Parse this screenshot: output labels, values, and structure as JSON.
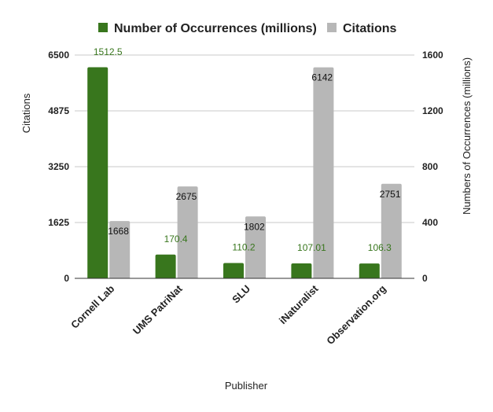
{
  "chart_data": {
    "type": "bar",
    "title": "",
    "xlabel": "Publisher",
    "ylabel_left": "Citations",
    "ylabel_right": "Numbers of Occurrences (millions)",
    "categories": [
      "Cornell Lab",
      "UMS PatriNat",
      "SLU",
      "iNaturalist",
      "Observation.org"
    ],
    "series": [
      {
        "name": "Number of Occurrences (millions)",
        "axis": "right",
        "color": "#38761d",
        "label_color": "#38761d",
        "values": [
          1512.5,
          170.4,
          110.2,
          107.01,
          106.3
        ],
        "labels": [
          "1512.5",
          "170.4",
          "110.2",
          "107.01",
          "106.3"
        ]
      },
      {
        "name": "Citations",
        "axis": "left",
        "color": "#b7b7b7",
        "label_color": "#111111",
        "values": [
          1668,
          2675,
          1802,
          6142,
          2751
        ],
        "labels": [
          "1668",
          "2675",
          "1802",
          "6142",
          "2751"
        ]
      }
    ],
    "left_axis": {
      "range": [
        0,
        6500
      ],
      "ticks": [
        0,
        1625,
        3250,
        4875,
        6500
      ],
      "tick_labels": [
        "0",
        "1625",
        "3250",
        "4875",
        "6500"
      ]
    },
    "right_axis": {
      "range": [
        0,
        1600
      ],
      "ticks": [
        0,
        400,
        800,
        1200,
        1600
      ],
      "tick_labels": [
        "0",
        "400",
        "800",
        "1200",
        "1600"
      ]
    },
    "grid": true,
    "legend_position": "top-center"
  }
}
